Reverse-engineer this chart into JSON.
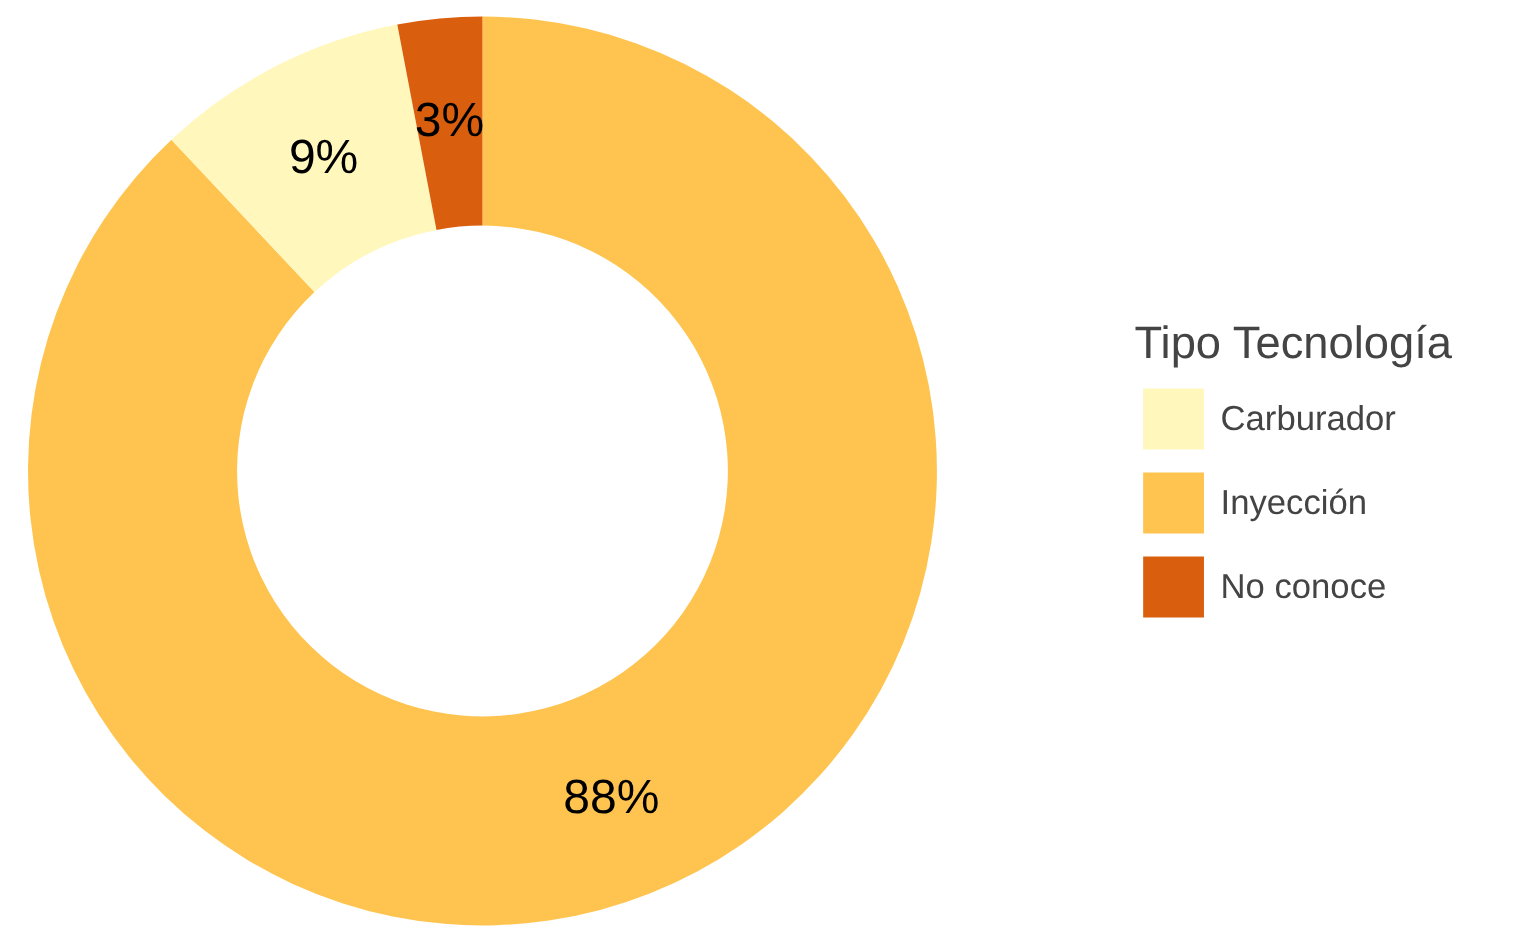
{
  "chart_data": {
    "type": "donut",
    "legend_title": "Tipo Tecnología",
    "legend": "right",
    "categories": [
      "Inyección",
      "Carburador",
      "No conoce"
    ],
    "values": [
      88,
      9,
      3
    ],
    "colors": [
      "#fec44f",
      "#fff7bc",
      "#d95f0e"
    ],
    "value_labels": [
      "88%",
      "9%",
      "3%"
    ]
  }
}
